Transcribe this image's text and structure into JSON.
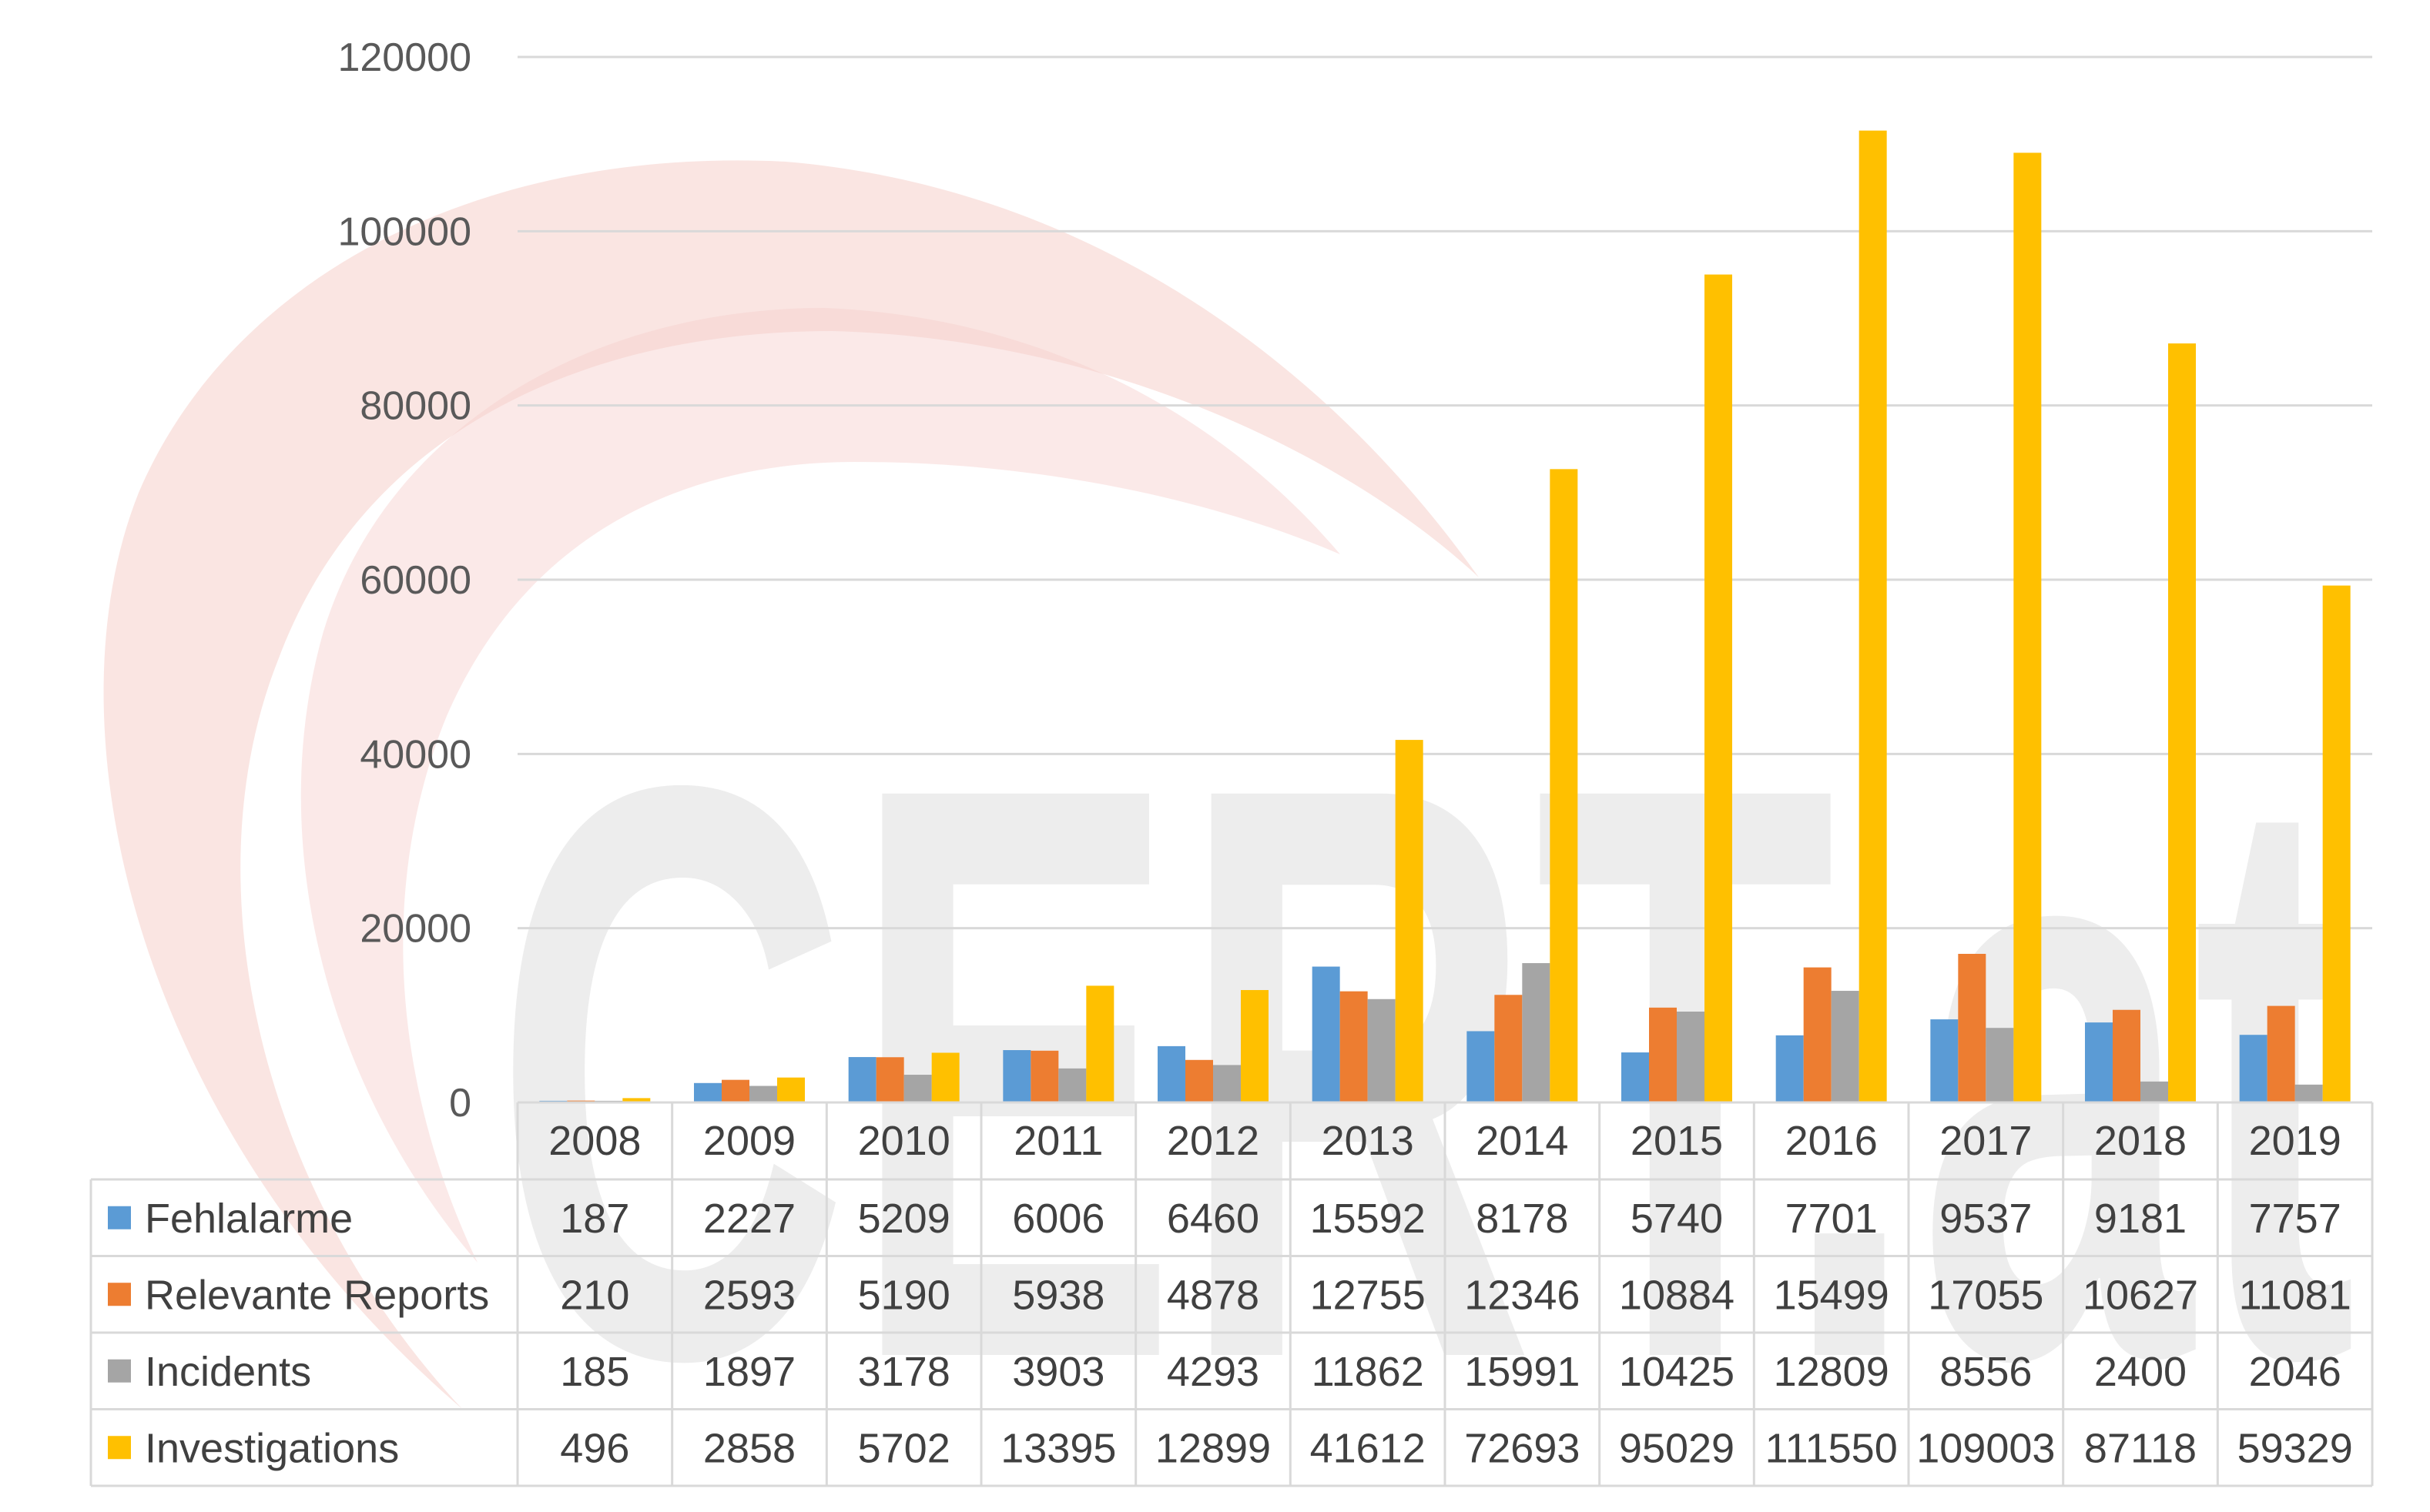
{
  "chart_data": {
    "type": "bar",
    "categories": [
      "2008",
      "2009",
      "2010",
      "2011",
      "2012",
      "2013",
      "2014",
      "2015",
      "2016",
      "2017",
      "2018",
      "2019"
    ],
    "series": [
      {
        "name": "Fehlalarme",
        "color": "#5B9BD5",
        "values": [
          187,
          2227,
          5209,
          6006,
          6460,
          15592,
          8178,
          5740,
          7701,
          9537,
          9181,
          7757
        ]
      },
      {
        "name": "Relevante Reports",
        "color": "#ED7D31",
        "values": [
          210,
          2593,
          5190,
          5938,
          4878,
          12755,
          12346,
          10884,
          15499,
          17055,
          10627,
          11081
        ]
      },
      {
        "name": "Incidents",
        "color": "#A5A5A5",
        "values": [
          185,
          1897,
          3178,
          3903,
          4293,
          11862,
          15991,
          10425,
          12809,
          8556,
          2400,
          2046
        ]
      },
      {
        "name": "Investigations",
        "color": "#FFC000",
        "values": [
          496,
          2858,
          5702,
          13395,
          12899,
          41612,
          72693,
          95029,
          111550,
          109003,
          87118,
          59329
        ]
      }
    ],
    "ylim": [
      0,
      120000
    ],
    "yticks": [
      "0",
      "20000",
      "40000",
      "60000",
      "80000",
      "100000",
      "120000"
    ],
    "grid": true,
    "data_table": true,
    "title": "",
    "xlabel": "",
    "ylabel": ""
  },
  "watermark": {
    "text": "CERT.at",
    "swoosh_color": "#F6CFCB",
    "text_color": "#EDEDED"
  }
}
